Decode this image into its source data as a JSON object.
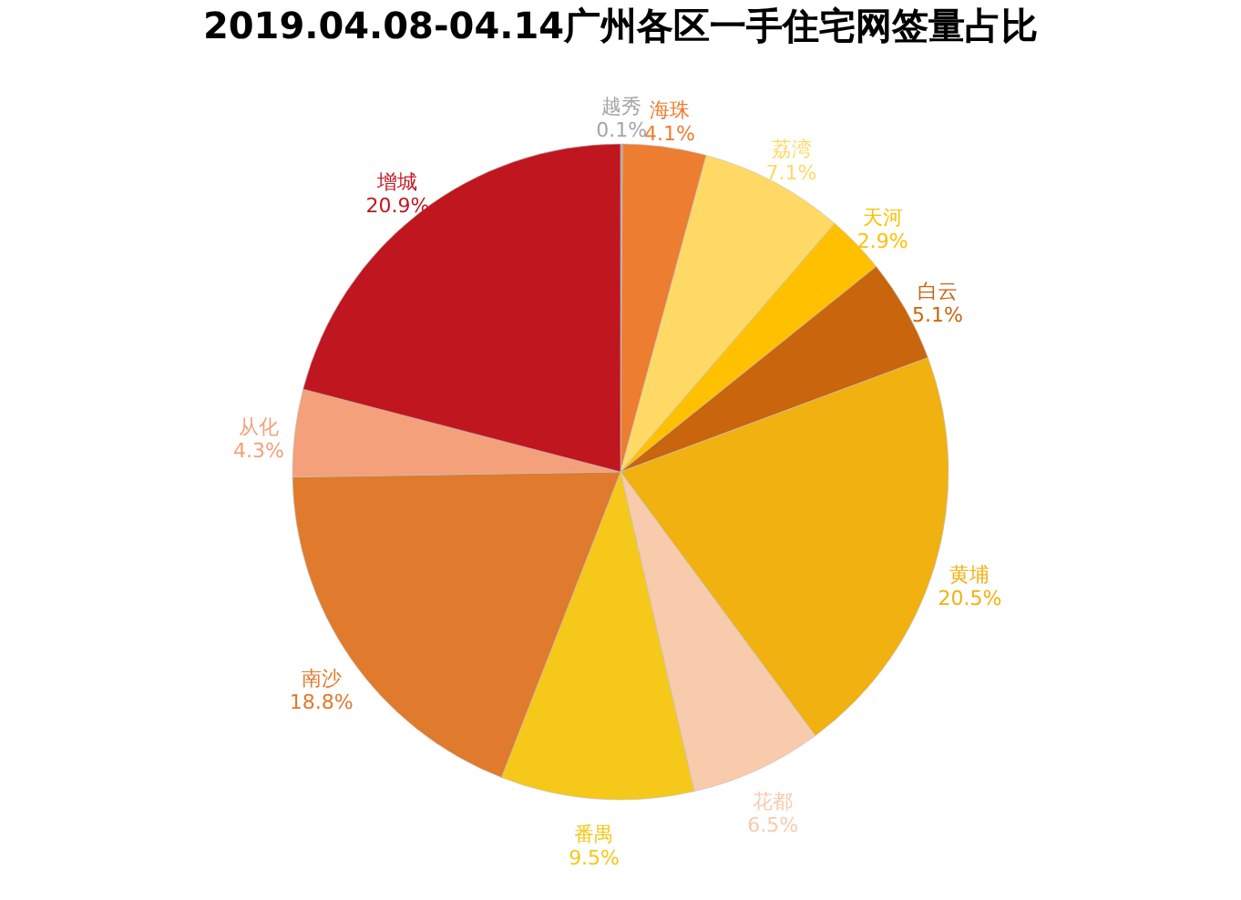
{
  "chart_data": {
    "type": "pie",
    "title": "2019.04.08-04.14广州各区一手住宅网签量占比",
    "categories": [
      "越秀",
      "海珠",
      "荔湾",
      "天河",
      "白云",
      "黄埔",
      "花都",
      "番禺",
      "南沙",
      "从化",
      "增城"
    ],
    "values": [
      0.1,
      4.1,
      7.1,
      2.9,
      5.1,
      20.5,
      6.5,
      9.5,
      18.8,
      4.3,
      20.9
    ],
    "value_labels": [
      "0.1%",
      "4.1%",
      "7.1%",
      "2.9%",
      "5.1%",
      "20.5%",
      "6.5%",
      "9.5%",
      "18.8%",
      "4.3%",
      "20.9%"
    ],
    "colors": [
      "#a5a5a5",
      "#ed7d31",
      "#ffd966",
      "#ffc000",
      "#c9650c",
      "#f0b111",
      "#f8cbad",
      "#f5c81a",
      "#e07a2c",
      "#f4a07a",
      "#c0161f"
    ]
  }
}
